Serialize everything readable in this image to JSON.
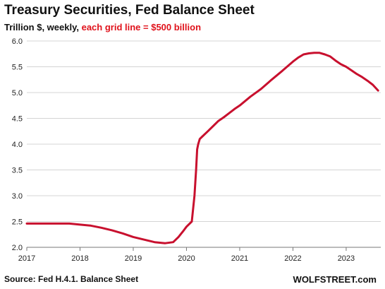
{
  "chart_data": {
    "type": "line",
    "title": "Treasury Securities, Fed Balance Sheet",
    "subtitle_plain": "Trillion $, weekly, ",
    "subtitle_accent": "each grid line = $500 billion",
    "xlabel": "",
    "ylabel": "",
    "xlim": [
      2017.0,
      2023.65
    ],
    "ylim": [
      2.0,
      6.0
    ],
    "x_ticks": [
      "2017",
      "2018",
      "2019",
      "2020",
      "2021",
      "2022",
      "2023"
    ],
    "y_ticks": [
      "2.0",
      "2.5",
      "3.0",
      "3.5",
      "4.0",
      "4.5",
      "5.0",
      "5.5",
      "6.0"
    ],
    "grid": "horizontal",
    "legend": "none",
    "series": [
      {
        "color": "#c8102e",
        "x": [
          2017.0,
          2017.3,
          2017.6,
          2017.8,
          2017.9,
          2018.0,
          2018.2,
          2018.4,
          2018.6,
          2018.8,
          2019.0,
          2019.2,
          2019.4,
          2019.6,
          2019.75,
          2019.85,
          2019.95,
          2020.0,
          2020.1,
          2020.15,
          2020.18,
          2020.2,
          2020.22,
          2020.25,
          2020.3,
          2020.4,
          2020.5,
          2020.6,
          2020.7,
          2020.8,
          2020.9,
          2021.0,
          2021.2,
          2021.4,
          2021.6,
          2021.8,
          2022.0,
          2022.1,
          2022.2,
          2022.3,
          2022.4,
          2022.5,
          2022.6,
          2022.7,
          2022.8,
          2022.9,
          2023.0,
          2023.1,
          2023.2,
          2023.3,
          2023.4,
          2023.5,
          2023.6
        ],
        "values": [
          2.46,
          2.46,
          2.46,
          2.46,
          2.45,
          2.44,
          2.42,
          2.38,
          2.33,
          2.27,
          2.2,
          2.15,
          2.1,
          2.08,
          2.1,
          2.2,
          2.33,
          2.4,
          2.5,
          3.0,
          3.5,
          3.9,
          4.0,
          4.1,
          4.15,
          4.25,
          4.35,
          4.45,
          4.52,
          4.6,
          4.68,
          4.75,
          4.92,
          5.07,
          5.25,
          5.42,
          5.6,
          5.68,
          5.74,
          5.76,
          5.77,
          5.77,
          5.74,
          5.7,
          5.62,
          5.55,
          5.5,
          5.43,
          5.36,
          5.3,
          5.23,
          5.15,
          5.04
        ]
      }
    ]
  },
  "footer": {
    "source": "Source: Fed H.4.1. Balance Sheet",
    "brand": "WOLFSTREET.com"
  }
}
